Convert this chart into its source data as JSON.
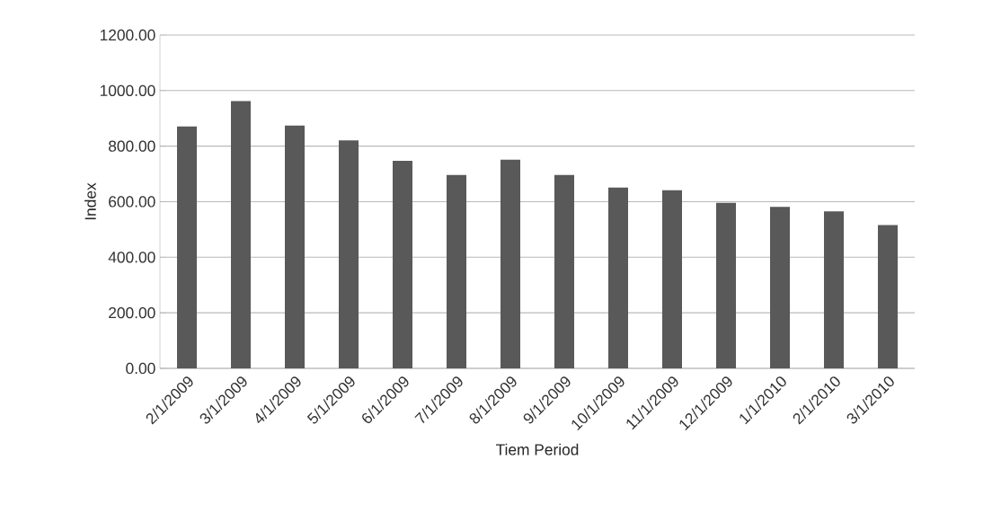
{
  "chart_data": {
    "type": "bar",
    "xlabel": "Tiem Period",
    "ylabel": "Index",
    "categories": [
      "2/1/2009",
      "3/1/2009",
      "4/1/2009",
      "5/1/2009",
      "6/1/2009",
      "7/1/2009",
      "8/1/2009",
      "9/1/2009",
      "10/1/2009",
      "11/1/2009",
      "12/1/2009",
      "1/1/2010",
      "2/1/2010",
      "3/1/2010"
    ],
    "values": [
      871,
      962,
      874,
      821,
      747,
      696,
      751,
      696,
      651,
      641,
      596,
      581,
      565,
      516
    ],
    "color": "#595959",
    "ylim": [
      0,
      1200
    ],
    "yticks": [
      {
        "value": 0,
        "label": "0.00"
      },
      {
        "value": 200,
        "label": "200.00"
      },
      {
        "value": 400,
        "label": "400.00"
      },
      {
        "value": 600,
        "label": "600.00"
      },
      {
        "value": 800,
        "label": "800.00"
      },
      {
        "value": 1000,
        "label": "1000.00"
      },
      {
        "value": 1200,
        "label": "1200.00"
      }
    ],
    "grid": "y"
  }
}
